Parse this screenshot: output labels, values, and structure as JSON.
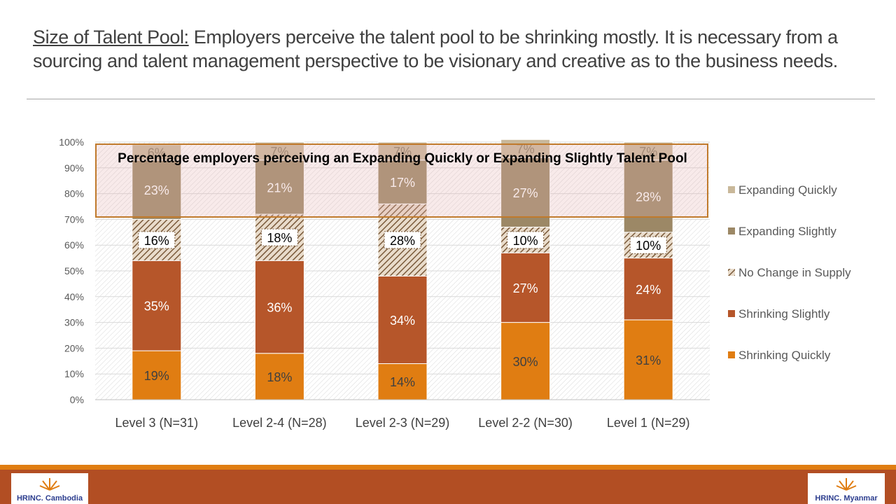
{
  "slide": {
    "title_lead": "Size of Talent Pool:",
    "title_rest": " Employers perceive the talent pool to be shrinking mostly. It is necessary from a sourcing and talent management perspective to be visionary and creative as to the business needs.",
    "highlight_text": "Percentage employers perceiving an Expanding Quickly or Expanding Slightly Talent Pool",
    "logo_left_text": "HRINC. Cambodia",
    "logo_right_text": "HRINC. Myanmar"
  },
  "colors": {
    "shrinking_quickly": "#e07d12",
    "shrinking_slightly": "#b6562a",
    "no_change": "#7a5a3a",
    "expanding_slightly": "#9c8866",
    "expanding_quickly": "#c9b89a",
    "footer": "#b24e23"
  },
  "chart_data": {
    "type": "bar",
    "stacked": true,
    "categories": [
      "Level 3 (N=31)",
      "Level 2-4 (N=28)",
      "Level 2-3 (N=29)",
      "Level 2-2 (N=30)",
      "Level 1 (N=29)"
    ],
    "series": [
      {
        "name": "Shrinking Quickly",
        "values": [
          19,
          18,
          14,
          30,
          31
        ],
        "labels": [
          "19%",
          "18%",
          "14%",
          "30%",
          "31%"
        ]
      },
      {
        "name": "Shrinking Slightly",
        "values": [
          35,
          36,
          34,
          27,
          24
        ],
        "labels": [
          "35%",
          "36%",
          "34%",
          "27%",
          "24%"
        ]
      },
      {
        "name": "No Change in Supply",
        "values": [
          16,
          18,
          28,
          10,
          10
        ],
        "labels": [
          "16%",
          "18%",
          "28%",
          "10%",
          "10%"
        ]
      },
      {
        "name": "Expanding Slightly",
        "values": [
          23,
          21,
          17,
          27,
          28
        ],
        "labels": [
          "23%",
          "21%",
          "17%",
          "27%",
          "28%"
        ]
      },
      {
        "name": "Expanding Quickly",
        "values": [
          6,
          7,
          7,
          7,
          7
        ],
        "labels": [
          "6%",
          "7%",
          "7%",
          "7%",
          "7%"
        ]
      }
    ],
    "ylim": [
      0,
      100
    ],
    "yticks": [
      "0%",
      "10%",
      "20%",
      "30%",
      "40%",
      "50%",
      "60%",
      "70%",
      "80%",
      "90%",
      "100%"
    ],
    "legend": [
      "Expanding Quickly",
      "Expanding Slightly",
      "No Change in Supply",
      "Shrinking Slightly",
      "Shrinking Quickly"
    ],
    "legend_position": "right"
  }
}
